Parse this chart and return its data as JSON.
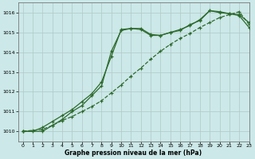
{
  "title": "",
  "xlabel": "Graphe pression niveau de la mer (hPa)",
  "xlim": [
    -0.5,
    23
  ],
  "ylim": [
    1009.5,
    1016.5
  ],
  "yticks": [
    1010,
    1011,
    1012,
    1013,
    1014,
    1015,
    1016
  ],
  "xticks": [
    0,
    1,
    2,
    3,
    4,
    5,
    6,
    7,
    8,
    9,
    10,
    11,
    12,
    13,
    14,
    15,
    16,
    17,
    18,
    19,
    20,
    21,
    22,
    23
  ],
  "bg_color": "#cce8e8",
  "grid_color": "#b0c8c8",
  "line_color": "#2d6a2d",
  "line1": {
    "x": [
      0,
      1,
      2,
      3,
      4,
      5,
      6,
      7,
      8,
      9,
      10,
      11,
      12,
      13,
      14,
      15,
      16,
      17,
      18,
      19,
      20,
      21,
      22,
      23
    ],
    "y": [
      1010.0,
      1010.0,
      1010.2,
      1010.5,
      1010.8,
      1011.1,
      1011.5,
      1011.9,
      1012.5,
      1013.8,
      1015.15,
      1015.2,
      1015.2,
      1014.9,
      1014.85,
      1015.0,
      1015.15,
      1015.35,
      1015.65,
      1016.1,
      1016.05,
      1015.95,
      1015.9,
      1015.5
    ]
  },
  "line2": {
    "x": [
      0,
      2,
      3,
      4,
      5,
      6,
      7,
      8,
      9,
      10,
      11,
      12,
      13,
      14,
      15,
      16,
      17,
      18,
      19,
      20,
      21,
      22,
      23
    ],
    "y": [
      1010.0,
      1010.0,
      1010.3,
      1010.6,
      1011.0,
      1011.3,
      1011.8,
      1012.3,
      1014.05,
      1015.1,
      1015.2,
      1015.15,
      1014.85,
      1014.85,
      1015.0,
      1015.1,
      1015.4,
      1015.6,
      1016.1,
      1016.0,
      1015.95,
      1015.85,
      1015.25
    ]
  },
  "line3": {
    "x": [
      0,
      1,
      2,
      3,
      4,
      5,
      6,
      7,
      8,
      9,
      10,
      11,
      12,
      13,
      14,
      15,
      16,
      17,
      18,
      19,
      20,
      21,
      22,
      23
    ],
    "y": [
      1010.0,
      1010.05,
      1010.1,
      1010.3,
      1010.55,
      1010.75,
      1011.0,
      1011.25,
      1011.55,
      1011.95,
      1012.35,
      1012.8,
      1013.2,
      1013.65,
      1014.05,
      1014.4,
      1014.7,
      1014.95,
      1015.25,
      1015.5,
      1015.75,
      1015.9,
      1016.05,
      1015.4
    ]
  }
}
